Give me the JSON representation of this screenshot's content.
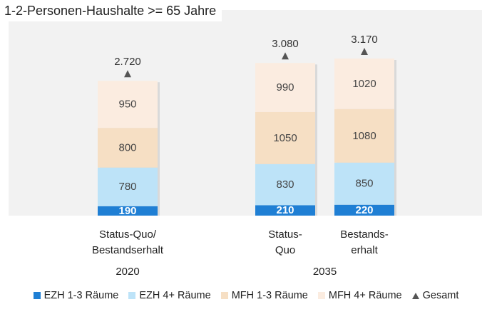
{
  "chart_data": {
    "type": "bar",
    "stacked": true,
    "title": "1-2-Personen-Haushalte >= 65 Jahre",
    "categories": [
      "Status-Quo/\nBestandserhalt",
      "Status-\nQuo",
      "Bestands-\nerhalt"
    ],
    "category_lines": [
      [
        "Status-Quo/",
        "Bestandserhalt"
      ],
      [
        "Status-",
        "Quo"
      ],
      [
        "Bestands-",
        "erhalt"
      ]
    ],
    "groups": [
      {
        "label": "2020",
        "categories": [
          0
        ]
      },
      {
        "label": "2035",
        "categories": [
          1,
          2
        ]
      }
    ],
    "series": [
      {
        "name": "EZH 1-3 Räume",
        "color": "#1f7fd4",
        "values": [
          190,
          210,
          220
        ]
      },
      {
        "name": "EZH 4+ Räume",
        "color": "#bde3f8",
        "values": [
          780,
          830,
          850
        ]
      },
      {
        "name": "MFH 1-3 Räume",
        "color": "#f6dfc4",
        "values": [
          800,
          1050,
          1080
        ]
      },
      {
        "name": "MFH 4+ Räume",
        "color": "#fbece0",
        "values": [
          950,
          990,
          1020
        ]
      }
    ],
    "totals": {
      "name": "Gesamt",
      "color": "#555555",
      "values": [
        "2.720",
        "3.080",
        "3.170"
      ],
      "numeric": [
        2720,
        3080,
        3170
      ]
    },
    "ylim": [
      0,
      3500
    ],
    "grid": false,
    "legend_position": "bottom"
  }
}
